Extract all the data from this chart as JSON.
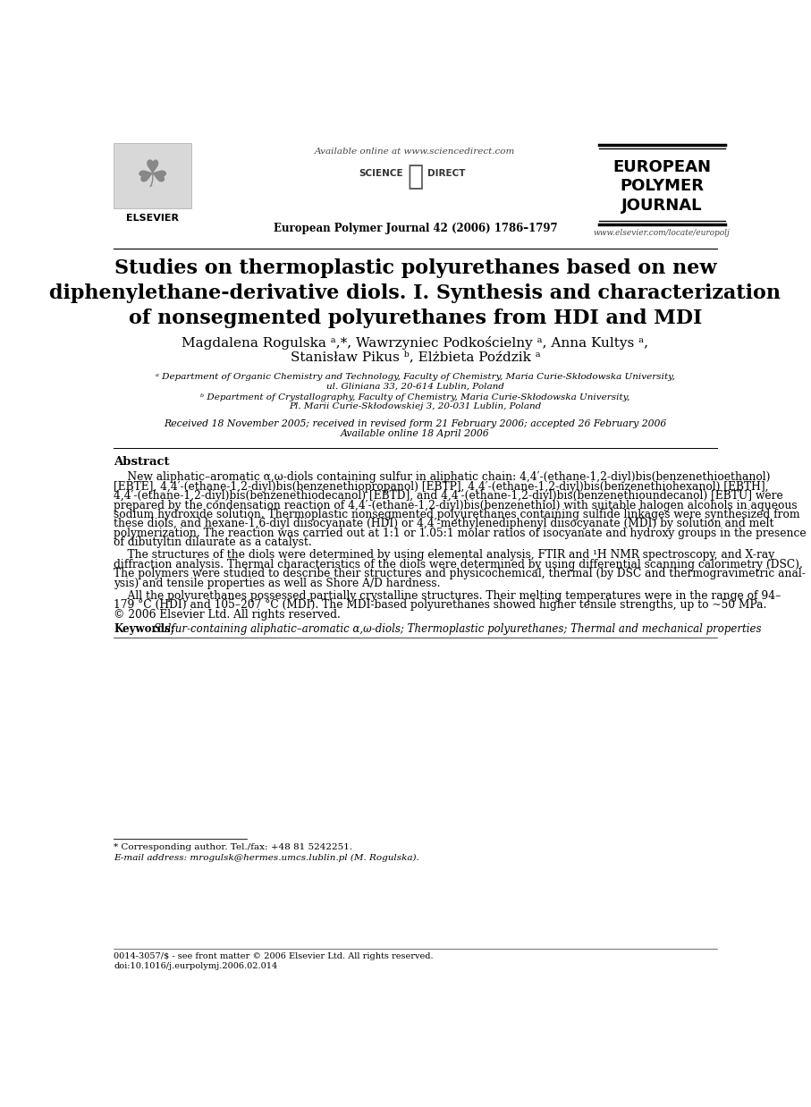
{
  "header_available_online": "Available online at www.sciencedirect.com",
  "header_journal_line": "European Polymer Journal 42 (2006) 1786–1797",
  "journal_name_line1": "EUROPEAN",
  "journal_name_line2": "POLYMER",
  "journal_name_line3": "JOURNAL",
  "journal_url": "www.elsevier.com/locate/europolj",
  "title_line1": "Studies on thermoplastic polyurethanes based on new",
  "title_line2": "diphenylethane-derivative diols. I. Synthesis and characterization",
  "title_line3": "of nonsegmented polyurethanes from HDI and MDI",
  "authors_line1": "Magdalena Rogulska ᵃ,*, Wawrzyniec Podkościelny ᵃ, Anna Kultys ᵃ,",
  "authors_line2": "Stanisław Pikus ᵇ, Elżbieta Poździk ᵃ",
  "affil_a": "ᵃ Department of Organic Chemistry and Technology, Faculty of Chemistry, Maria Curie-Skłodowska University,",
  "affil_a2": "ul. Gliniana 33, 20-614 Lublin, Poland",
  "affil_b": "ᵇ Department of Crystallography, Faculty of Chemistry, Maria Curie-Skłodowska University,",
  "affil_b2": "Pl. Marii Curie-Skłodowskiej 3, 20-031 Lublin, Poland",
  "received": "Received 18 November 2005; received in revised form 21 February 2006; accepted 26 February 2006",
  "available_online": "Available online 18 April 2006",
  "abstract_title": "Abstract",
  "abstract_para1_lines": [
    "New aliphatic–aromatic α,ω-diols containing sulfur in aliphatic chain: 4,4′-(ethane-1,2-diyl)bis(benzenethioethanol)",
    "[EBTE], 4,4′-(ethane-1,2-diyl)bis(benzenethiopropanol) [EBTP], 4,4′-(ethane-1,2-diyl)bis(benzenethiohexanol) [EBTH],",
    "4,4′-(ethane-1,2-diyl)bis(benzenethiodecanol) [EBTD], and 4,4′-(ethane-1,2-diyl)bis(benzenethioundecanol) [EBTU] were",
    "prepared by the condensation reaction of 4,4′-(ethane-1,2-diyl)bis(benzenethiol) with suitable halogen alcohols in aqueous",
    "sodium hydroxide solution. Thermoplastic nonsegmented polyurethanes containing sulfide linkages were synthesized from",
    "these diols, and hexane-1,6-diyl diisocyanate (HDI) or 4,4′-methylenediphenyl diisocyanate (MDI) by solution and melt",
    "polymerization. The reaction was carried out at 1:1 or 1.05:1 molar ratios of isocyanate and hydroxy groups in the presence",
    "of dibutyltin dilaurate as a catalyst."
  ],
  "abstract_para2_lines": [
    "The structures of the diols were determined by using elemental analysis, FTIR and ¹H NMR spectroscopy, and X-ray",
    "diffraction analysis. Thermal characteristics of the diols were determined by using differential scanning calorimetry (DSC).",
    "The polymers were studied to describe their structures and physicochemical, thermal (by DSC and thermogravimetric anal-",
    "ysis) and tensile properties as well as Shore A/D hardness."
  ],
  "abstract_para3_lines": [
    "All the polyurethanes possessed partially crystalline structures. Their melting temperatures were in the range of 94–",
    "179 °C (HDI) and 105–207 °C (MDI). The MDI-based polyurethanes showed higher tensile strengths, up to ~50 MPa.",
    "© 2006 Elsevier Ltd. All rights reserved."
  ],
  "keywords_label": "Keywords:",
  "keywords_text": "Sulfur-containing aliphatic–aromatic α,ω-diols; Thermoplastic polyurethanes; Thermal and mechanical properties",
  "footer_note": "* Corresponding author. Tel./fax: +48 81 5242251.",
  "footer_email": "E-mail address: mrogulsk@hermes.umcs.lublin.pl (M. Rogulska).",
  "footer_copyright": "0014-3057/$ - see front matter © 2006 Elsevier Ltd. All rights reserved.",
  "footer_doi": "doi:10.1016/j.eurpolymj.2006.02.014",
  "bg_color": "#ffffff",
  "text_color": "#000000"
}
